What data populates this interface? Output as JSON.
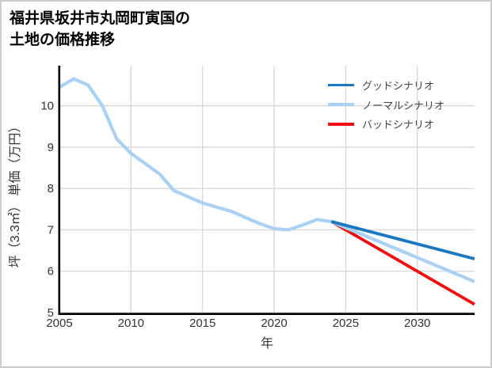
{
  "title": {
    "line1": "福井県坂井市丸岡町寅国の",
    "line2": "土地の価格推移"
  },
  "colors": {
    "card_border": "#cccccc",
    "grid": "#d6d6d6",
    "axis": "#000000",
    "tick_text": "#333333",
    "legend_text": "#444444"
  },
  "chart_data": {
    "type": "line",
    "title": "福井県坂井市丸岡町寅国の土地の価格推移",
    "xlabel": "年",
    "ylabel": "坪（3.3㎡） 単価（万円）",
    "xlim": [
      2005,
      2034
    ],
    "ylim": [
      5,
      10.97
    ],
    "x_ticks": [
      2005,
      2010,
      2015,
      2020,
      2025,
      2030
    ],
    "y_ticks": [
      5,
      6,
      7,
      8,
      9,
      10
    ],
    "grid": true,
    "legend_position": "upper right",
    "series": [
      {
        "name": "グッドシナリオ",
        "color": "#1a78c2",
        "x": [
          2024,
          2034
        ],
        "values": [
          7.2,
          6.3
        ]
      },
      {
        "name": "ノーマルシナリオ",
        "color": "#a9d1f4",
        "x": [
          2005,
          2006,
          2007,
          2008,
          2009,
          2010,
          2011,
          2012,
          2013,
          2014,
          2015,
          2016,
          2017,
          2018,
          2019,
          2020,
          2021,
          2022,
          2023,
          2024,
          2034
        ],
        "values": [
          10.45,
          10.65,
          10.5,
          10.0,
          9.2,
          8.85,
          8.6,
          8.35,
          7.95,
          7.8,
          7.65,
          7.55,
          7.45,
          7.3,
          7.15,
          7.03,
          7.0,
          7.12,
          7.25,
          7.2,
          5.75
        ]
      },
      {
        "name": "バッドシナリオ",
        "color": "#f20d0d",
        "x": [
          2024,
          2034
        ],
        "values": [
          7.2,
          5.2
        ]
      }
    ]
  }
}
